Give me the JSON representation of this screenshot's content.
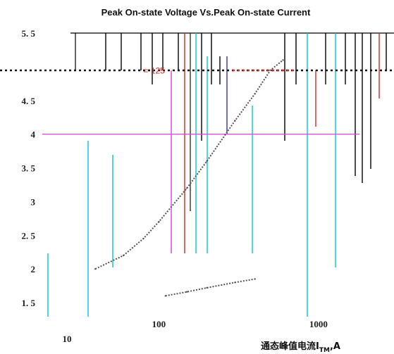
{
  "chart_data": {
    "type": "line",
    "title": "Peak On-state Voltage Vs.Peak On-state Current",
    "xlabel": "通态峰值电流",
    "xlabel_sub": "TM",
    "xlabel_symbol": "I",
    "xlabel_unit": ",A",
    "xscale": "log",
    "xlim": [
      30,
      2000
    ],
    "ylim": [
      1.5,
      5.5
    ],
    "x_ticks": [
      {
        "value": 10,
        "label": "10"
      },
      {
        "value": 100,
        "label": "100"
      },
      {
        "value": 1000,
        "label": "1000"
      }
    ],
    "y_ticks": [
      {
        "value": 5.5,
        "label": "5. 5"
      },
      {
        "value": 4.5,
        "label": "4. 5"
      },
      {
        "value": 4,
        "label": "4"
      },
      {
        "value": 3.5,
        "label": "3. 5"
      },
      {
        "value": 3,
        "label": "3"
      },
      {
        "value": 2.5,
        "label": "2. 5"
      },
      {
        "value": 2,
        "label": "2"
      },
      {
        "value": 1.5,
        "label": "1. 5"
      }
    ],
    "annotations": [
      {
        "text": "= 125",
        "x": 80,
        "y": 4.9
      }
    ],
    "reference_line": {
      "y": 4,
      "color": "#e040e0"
    },
    "series": [
      {
        "color": "#555555",
        "x": [
          40,
          60,
          80,
          100,
          150,
          200,
          300,
          400,
          500,
          600
        ],
        "y": [
          2.0,
          2.2,
          2.45,
          2.7,
          3.2,
          3.6,
          4.2,
          4.6,
          4.95,
          5.1
        ]
      },
      {
        "color": "#555555",
        "x": [
          110,
          150,
          200,
          300,
          400
        ],
        "y": [
          1.6,
          1.66,
          1.72,
          1.8,
          1.85
        ]
      }
    ],
    "grid": false
  }
}
